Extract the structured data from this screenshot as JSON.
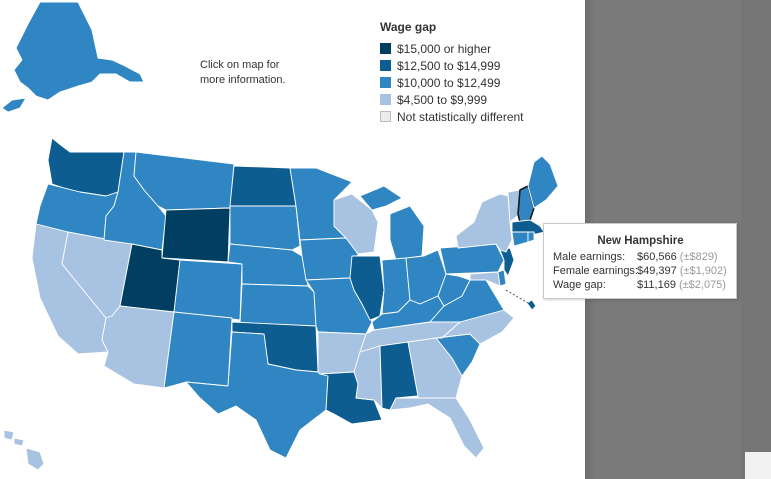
{
  "hint": {
    "line1": "Click on map for",
    "line2": "more information."
  },
  "legend": {
    "title": "Wage gap",
    "items": [
      {
        "label": "$15,000 or higher",
        "color": "#003f62"
      },
      {
        "label": "$12,500 to $14,999",
        "color": "#0e5d91"
      },
      {
        "label": "$10,000 to $12,499",
        "color": "#2f86c3"
      },
      {
        "label": "$4,500 to $9,999",
        "color": "#a8c2e2"
      },
      {
        "label": "Not statistically different",
        "color": "#ececec"
      }
    ]
  },
  "tooltip": {
    "state": "New Hampshire",
    "rows": [
      {
        "label": "Male earnings:",
        "value": "$60,566",
        "moe": "(±$829)"
      },
      {
        "label": "Female earnings:",
        "value": "$49,397",
        "moe": "(±$1,902)"
      },
      {
        "label": "Wage gap:",
        "value": "$11,169",
        "moe": "(±$2,075)"
      }
    ]
  },
  "map_data": {
    "type": "choropleth",
    "selected_state": "New Hampshire",
    "state_categories": {
      "Alaska": "$10,000 to $12,499",
      "Hawaii": "$4,500 to $9,999",
      "Washington": "$12,500 to $14,999",
      "Oregon": "$10,000 to $12,499",
      "California": "$4,500 to $9,999",
      "Nevada": "$4,500 to $9,999",
      "Idaho": "$10,000 to $12,499",
      "Montana": "$10,000 to $12,499",
      "Wyoming": "$15,000 or higher",
      "Utah": "$15,000 or higher",
      "Arizona": "$4,500 to $9,999",
      "Colorado": "$10,000 to $12,499",
      "New Mexico": "$10,000 to $12,499",
      "North Dakota": "$12,500 to $14,999",
      "South Dakota": "$10,000 to $12,499",
      "Nebraska": "$10,000 to $12,499",
      "Kansas": "$10,000 to $12,499",
      "Oklahoma": "$12,500 to $14,999",
      "Texas": "$10,000 to $12,499",
      "Minnesota": "$10,000 to $12,499",
      "Iowa": "$10,000 to $12,499",
      "Missouri": "$10,000 to $12,499",
      "Arkansas": "$4,500 to $9,999",
      "Louisiana": "$12,500 to $14,999",
      "Wisconsin": "$4,500 to $9,999",
      "Illinois": "$12,500 to $14,999",
      "Michigan": "$10,000 to $12,499",
      "Indiana": "$10,000 to $12,499",
      "Ohio": "$10,000 to $12,499",
      "Kentucky": "$10,000 to $12,499",
      "Tennessee": "$4,500 to $9,999",
      "Mississippi": "$4,500 to $9,999",
      "Alabama": "$12,500 to $14,999",
      "Georgia": "$4,500 to $9,999",
      "Florida": "$4,500 to $9,999",
      "South Carolina": "$10,000 to $12,499",
      "North Carolina": "$4,500 to $9,999",
      "Virginia": "$10,000 to $12,499",
      "West Virginia": "$10,000 to $12,499",
      "Pennsylvania": "$10,000 to $12,499",
      "New York": "$4,500 to $9,999",
      "New Jersey": "$12,500 to $14,999",
      "Delaware": "$10,000 to $12,499",
      "Maryland": "$4,500 to $9,999",
      "District of Columbia": "$12,500 to $14,999",
      "Connecticut": "$10,000 to $12,499",
      "Rhode Island": "$10,000 to $12,499",
      "Massachusetts": "$12,500 to $14,999",
      "Vermont": "$4,500 to $9,999",
      "New Hampshire": "$10,000 to $12,499",
      "Maine": "$10,000 to $12,499"
    }
  }
}
